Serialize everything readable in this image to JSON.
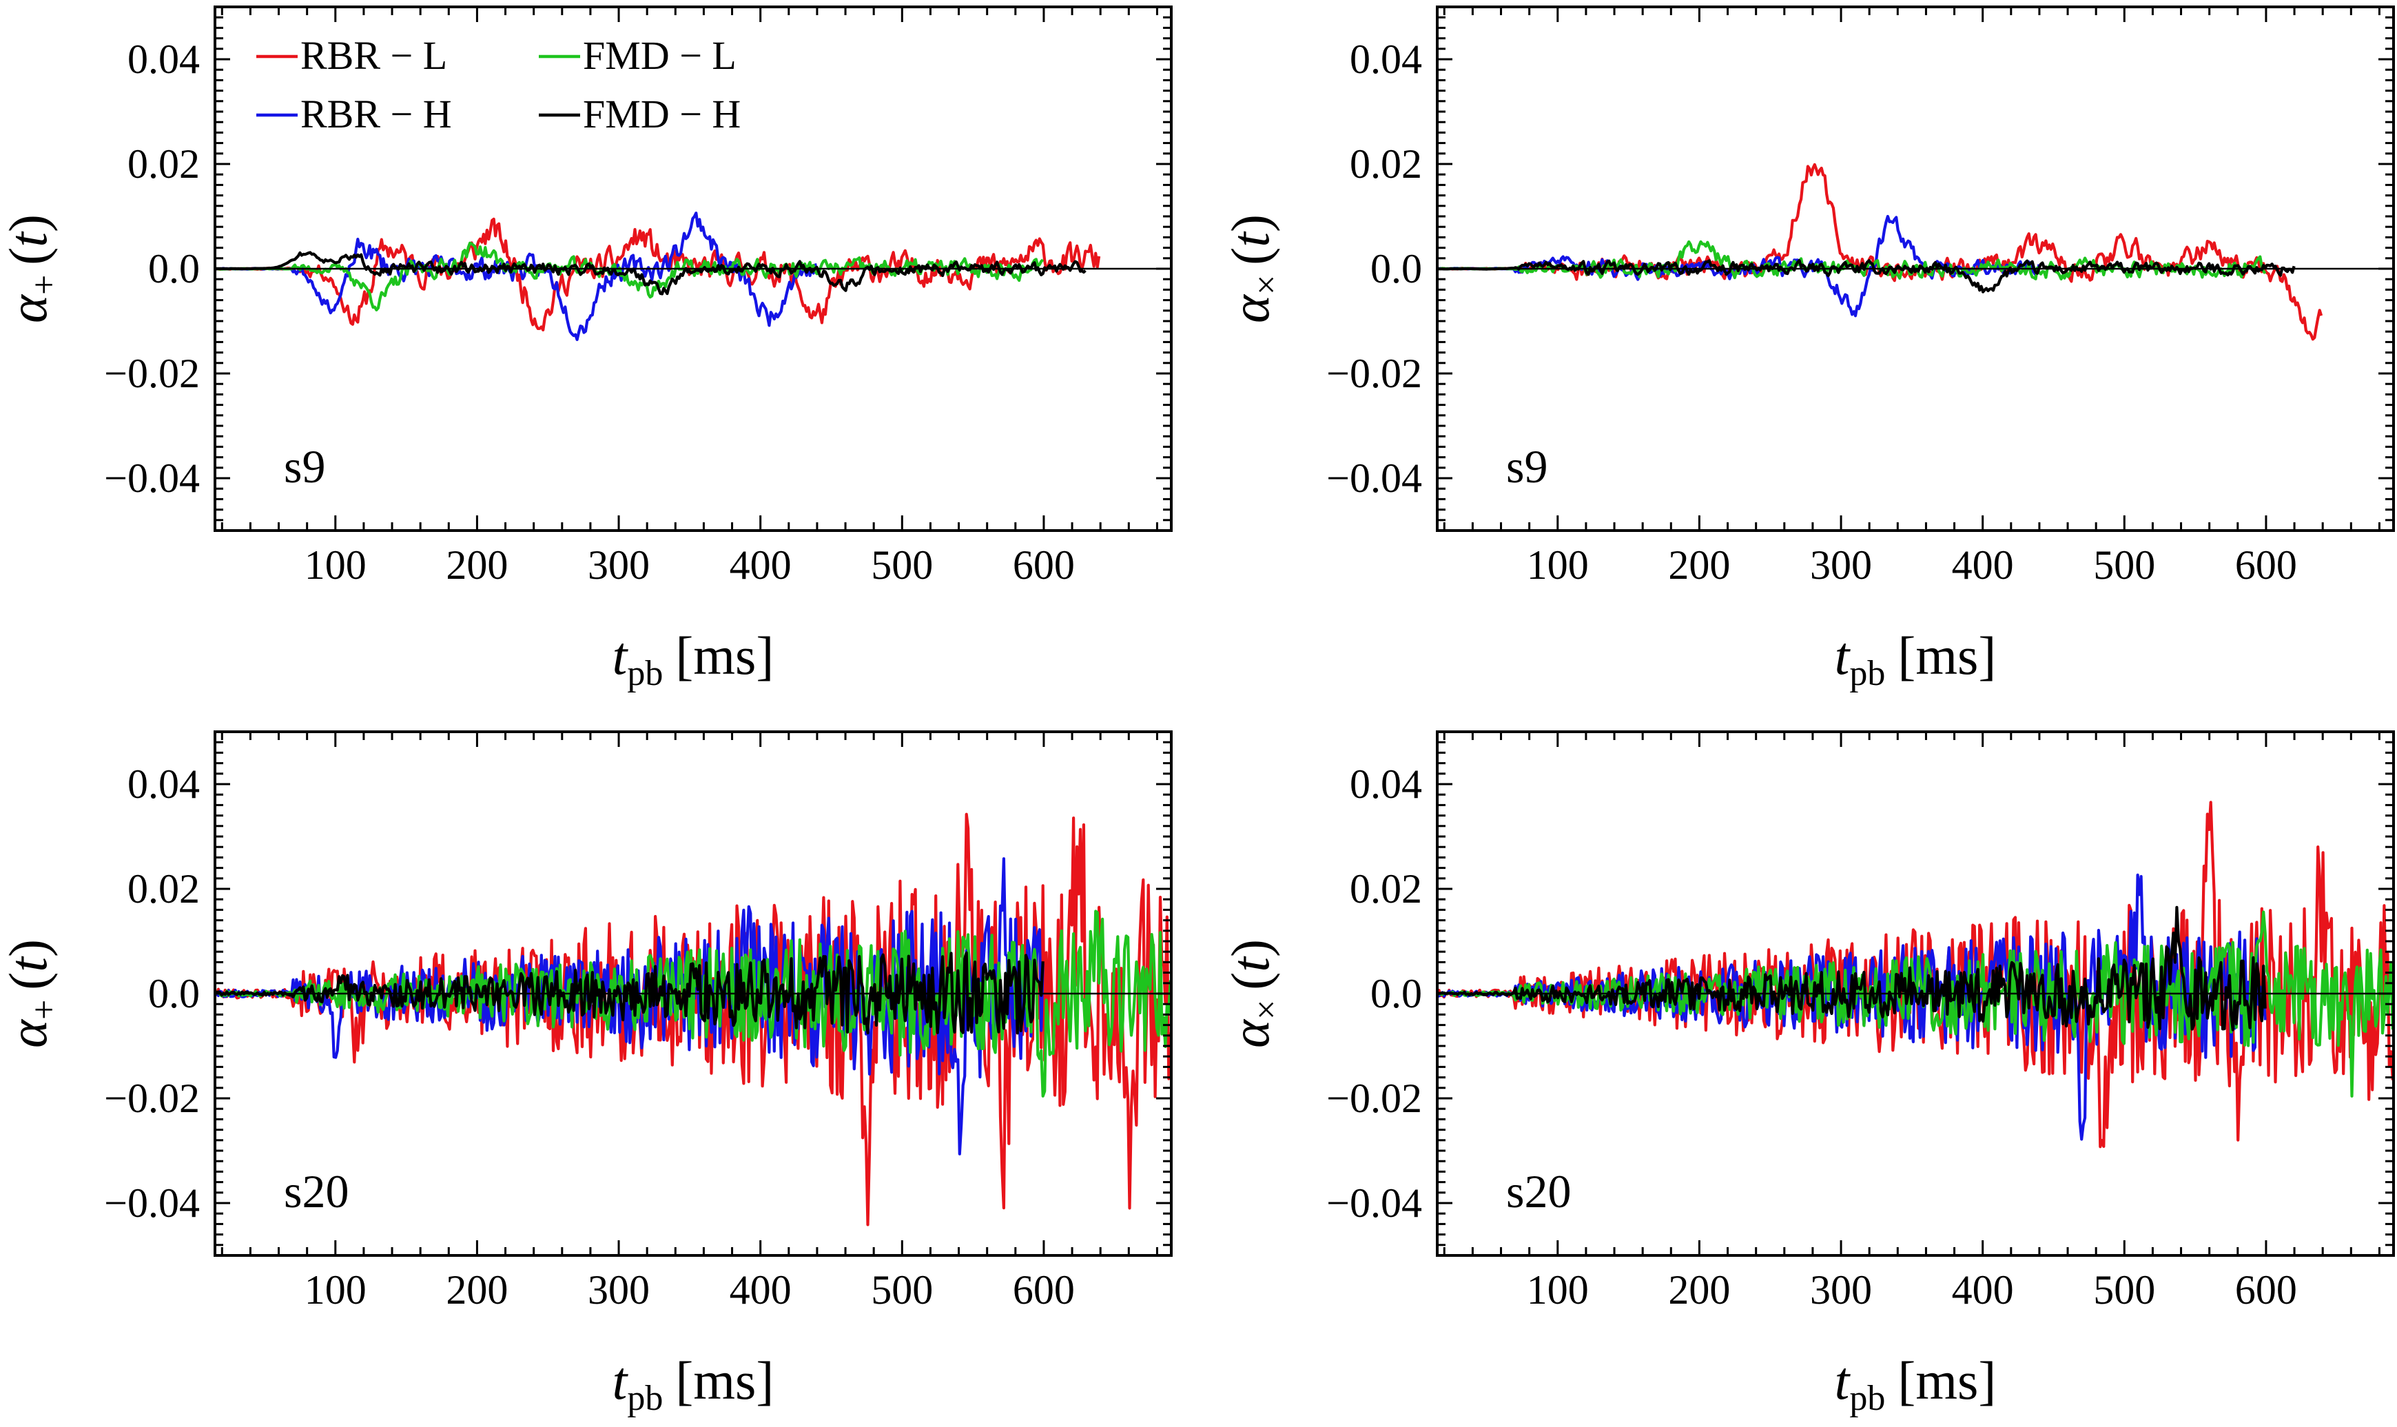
{
  "legend": [
    {
      "label": "RBR − L",
      "color": "#e8141b"
    },
    {
      "label": "FMD − L",
      "color": "#1ec41e"
    },
    {
      "label": "RBR − H",
      "color": "#1414e6"
    },
    {
      "label": "FMD − H",
      "color": "#000000"
    }
  ],
  "chart_data": [
    {
      "type": "line",
      "panel_label": "s9",
      "ylabel_main": "α",
      "ylabel_sub": "+",
      "ylabel_arg": "(t)",
      "xlabel_main": "t",
      "xlabel_sub": "pb",
      "xlabel_unit": "[ms]",
      "xlim": [
        15,
        690
      ],
      "ylim": [
        -0.05,
        0.05
      ],
      "xticks": [
        100,
        200,
        300,
        400,
        500,
        600
      ],
      "yticks": [
        -0.04,
        -0.02,
        0.0,
        0.02,
        0.04
      ],
      "ytick_labels": [
        "−0.04",
        "−0.02",
        "0.0",
        "0.02",
        "0.04"
      ],
      "legend_position": "top-left",
      "series": [
        {
          "name": "RBR − L",
          "color": "#e8141b",
          "x_start": 15,
          "x_end": 640,
          "amp": 0.005,
          "seed": 11,
          "env": "early",
          "spikes": [
            [
              115,
              -0.01
            ],
            [
              135,
              0.005
            ],
            [
              210,
              0.007
            ],
            [
              245,
              -0.009
            ],
            [
              315,
              0.006
            ],
            [
              440,
              -0.009
            ],
            [
              595,
              0.003
            ],
            [
              630,
              0.002
            ]
          ]
        },
        {
          "name": "RBR − H",
          "color": "#1414e6",
          "x_start": 15,
          "x_end": 440,
          "amp": 0.004,
          "seed": 23,
          "env": "early",
          "spikes": [
            [
              100,
              -0.009
            ],
            [
              115,
              0.006
            ],
            [
              272,
              -0.011
            ],
            [
              355,
              0.009
            ],
            [
              405,
              -0.009
            ]
          ]
        },
        {
          "name": "FMD − L",
          "color": "#1ec41e",
          "x_start": 15,
          "x_end": 600,
          "amp": 0.003,
          "seed": 37,
          "env": "early",
          "spikes": [
            [
              130,
              -0.006
            ],
            [
              200,
              0.004
            ],
            [
              320,
              -0.004
            ]
          ]
        },
        {
          "name": "FMD − H",
          "color": "#000000",
          "x_start": 15,
          "x_end": 630,
          "amp": 0.002,
          "seed": 51,
          "env": "early",
          "spikes": [
            [
              80,
              0.003
            ],
            [
              110,
              0.002
            ],
            [
              330,
              -0.004
            ],
            [
              460,
              -0.003
            ]
          ]
        }
      ]
    },
    {
      "type": "line",
      "panel_label": "s9",
      "ylabel_main": "α",
      "ylabel_sub": "×",
      "ylabel_arg": "(t)",
      "xlabel_main": "t",
      "xlabel_sub": "pb",
      "xlabel_unit": "[ms]",
      "xlim": [
        15,
        690
      ],
      "ylim": [
        -0.05,
        0.05
      ],
      "xticks": [
        100,
        200,
        300,
        400,
        500,
        600
      ],
      "yticks": [
        -0.04,
        -0.02,
        0.0,
        0.02,
        0.04
      ],
      "ytick_labels": [
        "−0.04",
        "−0.02",
        "0.0",
        "0.02",
        "0.04"
      ],
      "series": [
        {
          "name": "RBR − L",
          "color": "#e8141b",
          "x_start": 15,
          "x_end": 640,
          "amp": 0.004,
          "seed": 61,
          "env": "early",
          "spikes": [
            [
              278,
              0.016
            ],
            [
              290,
              0.006
            ],
            [
              440,
              0.005
            ],
            [
              500,
              0.005
            ],
            [
              560,
              0.004
            ],
            [
              630,
              -0.012
            ]
          ]
        },
        {
          "name": "RBR − H",
          "color": "#1414e6",
          "x_start": 15,
          "x_end": 440,
          "amp": 0.003,
          "seed": 73,
          "env": "early",
          "spikes": [
            [
              100,
              0.002
            ],
            [
              335,
              0.009
            ],
            [
              310,
              -0.008
            ]
          ]
        },
        {
          "name": "FMD − L",
          "color": "#1ec41e",
          "x_start": 15,
          "x_end": 600,
          "amp": 0.003,
          "seed": 89,
          "env": "early",
          "spikes": [
            [
              200,
              0.005
            ]
          ]
        },
        {
          "name": "FMD − H",
          "color": "#000000",
          "x_start": 15,
          "x_end": 620,
          "amp": 0.002,
          "seed": 97,
          "env": "early",
          "spikes": [
            [
              400,
              -0.004
            ],
            [
              90,
              0.001
            ]
          ]
        }
      ]
    },
    {
      "type": "line",
      "panel_label": "s20",
      "ylabel_main": "α",
      "ylabel_sub": "+",
      "ylabel_arg": "(t)",
      "xlabel_main": "t",
      "xlabel_sub": "pb",
      "xlabel_unit": "[ms]",
      "xlim": [
        15,
        690
      ],
      "ylim": [
        -0.05,
        0.05
      ],
      "xticks": [
        100,
        200,
        300,
        400,
        500,
        600
      ],
      "yticks": [
        -0.04,
        -0.02,
        0.0,
        0.02,
        0.04
      ],
      "ytick_labels": [
        "−0.04",
        "−0.02",
        "0.0",
        "0.02",
        "0.04"
      ],
      "series": [
        {
          "name": "RBR − L",
          "color": "#e8141b",
          "x_start": 15,
          "x_end": 690,
          "amp": 0.022,
          "seed": 101,
          "env": "grow",
          "spikes": [
            [
              115,
              -0.01
            ],
            [
              475,
              -0.026
            ],
            [
              545,
              0.023
            ],
            [
              572,
              -0.027
            ],
            [
              625,
              0.029
            ],
            [
              660,
              -0.02
            ]
          ]
        },
        {
          "name": "RBR − H",
          "color": "#1414e6",
          "x_start": 15,
          "x_end": 600,
          "amp": 0.016,
          "seed": 113,
          "env": "grow",
          "spikes": [
            [
              100,
              -0.009
            ],
            [
              390,
              0.015
            ],
            [
              540,
              -0.021
            ],
            [
              570,
              0.018
            ]
          ]
        },
        {
          "name": "FMD − L",
          "color": "#1ec41e",
          "x_start": 15,
          "x_end": 690,
          "amp": 0.012,
          "seed": 127,
          "env": "grow",
          "spikes": [
            [
              640,
              0.014
            ],
            [
              600,
              -0.012
            ]
          ]
        },
        {
          "name": "FMD − H",
          "color": "#000000",
          "x_start": 15,
          "x_end": 600,
          "amp": 0.008,
          "seed": 139,
          "env": "grow",
          "spikes": [
            [
              105,
              0.003
            ],
            [
              560,
              0.01
            ]
          ]
        }
      ]
    },
    {
      "type": "line",
      "panel_label": "s20",
      "ylabel_main": "α",
      "ylabel_sub": "×",
      "ylabel_arg": "(t)",
      "xlabel_main": "t",
      "xlabel_sub": "pb",
      "xlabel_unit": "[ms]",
      "xlim": [
        15,
        690
      ],
      "ylim": [
        -0.05,
        0.05
      ],
      "xticks": [
        100,
        200,
        300,
        400,
        500,
        600
      ],
      "yticks": [
        -0.04,
        -0.02,
        0.0,
        0.02,
        0.04
      ],
      "ytick_labels": [
        "−0.04",
        "−0.02",
        "0.0",
        "0.02",
        "0.04"
      ],
      "series": [
        {
          "name": "RBR − L",
          "color": "#e8141b",
          "x_start": 15,
          "x_end": 690,
          "amp": 0.017,
          "seed": 151,
          "env": "grow",
          "spikes": [
            [
              485,
              -0.023
            ],
            [
              560,
              0.021
            ],
            [
              580,
              -0.018
            ],
            [
              640,
              0.021
            ],
            [
              670,
              -0.01
            ]
          ]
        },
        {
          "name": "RBR − H",
          "color": "#1414e6",
          "x_start": 15,
          "x_end": 600,
          "amp": 0.013,
          "seed": 163,
          "env": "grow",
          "spikes": [
            [
              510,
              0.015
            ],
            [
              470,
              -0.018
            ]
          ]
        },
        {
          "name": "FMD − L",
          "color": "#1ec41e",
          "x_start": 15,
          "x_end": 690,
          "amp": 0.01,
          "seed": 179,
          "env": "grow",
          "spikes": [
            [
              660,
              -0.012
            ],
            [
              600,
              0.01
            ]
          ]
        },
        {
          "name": "FMD − H",
          "color": "#000000",
          "x_start": 15,
          "x_end": 600,
          "amp": 0.007,
          "seed": 191,
          "env": "grow",
          "spikes": [
            [
              535,
              0.012
            ]
          ]
        }
      ]
    }
  ]
}
